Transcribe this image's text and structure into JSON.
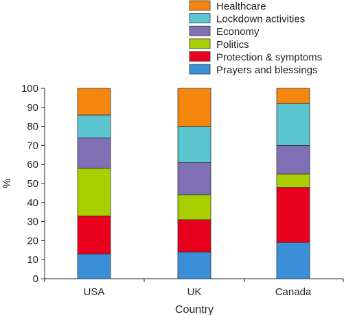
{
  "chart_data": {
    "type": "bar",
    "stacked": true,
    "xlabel": "Country",
    "ylabel": "%",
    "ylim": [
      0,
      100
    ],
    "yticks": [
      0,
      10,
      20,
      30,
      40,
      50,
      60,
      70,
      80,
      90,
      100
    ],
    "categories": [
      "USA",
      "UK",
      "Canada"
    ],
    "series": [
      {
        "name": "Prayers and blessings",
        "color": "#3b8fd6",
        "values": [
          13,
          14,
          19
        ]
      },
      {
        "name": "Protection & symptoms",
        "color": "#e8001c",
        "values": [
          20,
          17,
          29
        ]
      },
      {
        "name": "Politics",
        "color": "#a9cf00",
        "values": [
          25,
          13,
          7
        ]
      },
      {
        "name": "Economy",
        "color": "#7f70b5",
        "values": [
          16,
          17,
          15
        ]
      },
      {
        "name": "Lockdown activities",
        "color": "#5bc5d0",
        "values": [
          12,
          19,
          22
        ]
      },
      {
        "name": "Healthcare",
        "color": "#f5870f",
        "values": [
          14,
          20,
          8
        ]
      }
    ],
    "legend_position": "top-right",
    "grid": false
  }
}
